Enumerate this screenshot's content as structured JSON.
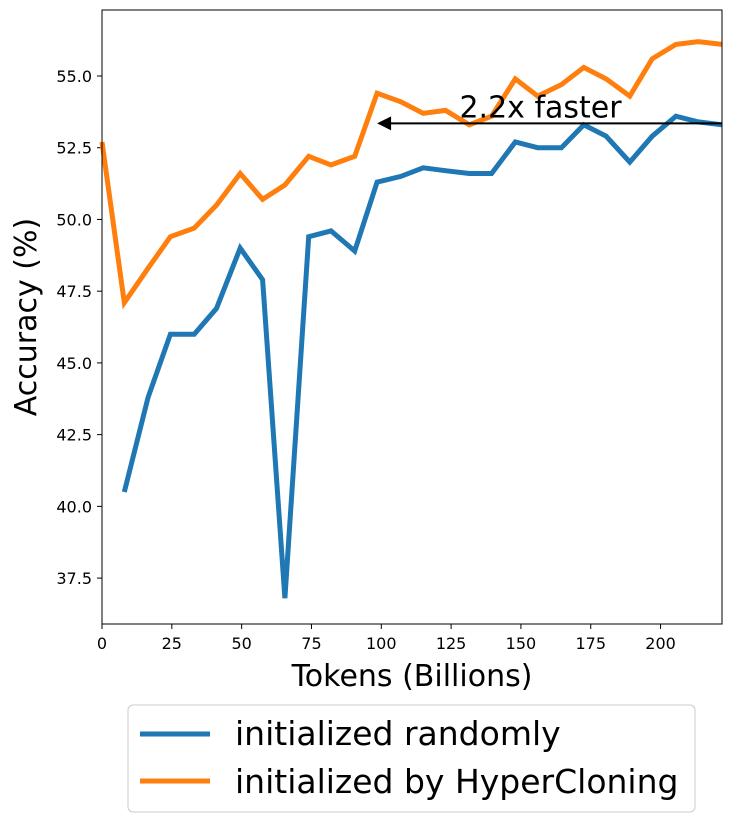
{
  "chart_data": {
    "type": "line",
    "xlabel": "Tokens (Billions)",
    "ylabel": "Accuracy (%)",
    "xlim": [
      0,
      222
    ],
    "ylim": [
      35.9,
      57.3
    ],
    "xticks": [
      0,
      25,
      50,
      75,
      100,
      125,
      150,
      175,
      200
    ],
    "yticks": [
      37.5,
      40.0,
      42.5,
      45.0,
      47.5,
      50.0,
      52.5,
      55.0
    ],
    "series": [
      {
        "name": "initialized randomly",
        "color": "#1f77b4",
        "x": [
          8,
          16.5,
          24.5,
          33,
          41,
          49.5,
          57.5,
          65.5,
          74,
          82,
          90.5,
          98.5,
          107,
          115,
          123,
          131.5,
          139.5,
          148,
          156,
          164.5,
          172.5,
          180.5,
          189,
          197,
          205.5,
          213.5,
          222
        ],
        "y": [
          40.5,
          43.8,
          46.0,
          46.0,
          46.9,
          49.0,
          47.9,
          36.8,
          49.4,
          49.6,
          48.9,
          51.3,
          51.5,
          51.8,
          51.7,
          51.6,
          51.6,
          52.7,
          52.5,
          52.5,
          53.3,
          52.9,
          52.0,
          52.9,
          53.6,
          53.4,
          53.3
        ]
      },
      {
        "name": "initialized by HyperCloning",
        "color": "#ff7f0e",
        "x": [
          0,
          8,
          16.5,
          24.5,
          33,
          41,
          49.5,
          57.5,
          65.5,
          74,
          82,
          90.5,
          98.5,
          107,
          115,
          123,
          131.5,
          139.5,
          148,
          156,
          164.5,
          172.5,
          180.5,
          189,
          197,
          205.5,
          213.5,
          222
        ],
        "y": [
          52.7,
          47.1,
          48.3,
          49.4,
          49.7,
          50.5,
          51.6,
          50.7,
          51.2,
          52.2,
          51.9,
          52.2,
          54.4,
          54.1,
          53.7,
          53.8,
          53.3,
          53.6,
          54.9,
          54.3,
          54.7,
          55.3,
          54.9,
          54.3,
          55.6,
          56.1,
          56.2,
          56.1
        ]
      }
    ],
    "annotation": {
      "text": "2.2x faster",
      "arrow_from": [
        222,
        53.35
      ],
      "arrow_to": [
        98.5,
        53.35
      ]
    },
    "legend_position": "bottom-center"
  }
}
